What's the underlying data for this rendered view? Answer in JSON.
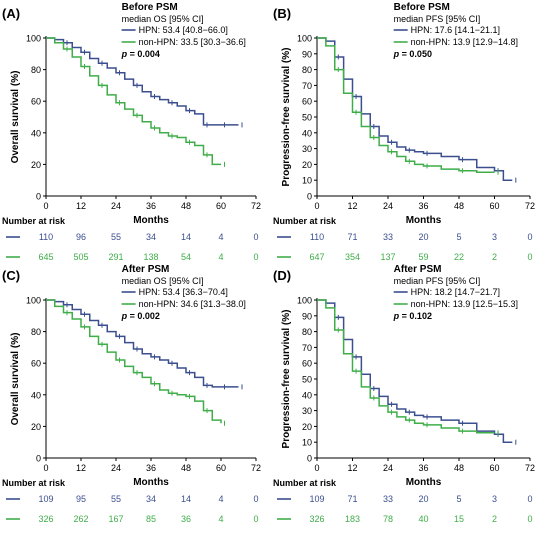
{
  "colors": {
    "hpn": "#3b4f8f",
    "non_hpn": "#3fae49",
    "axis": "#000000"
  },
  "chart_data": [
    {
      "type": "line",
      "panel_label": "(A)",
      "title": "Before PSM",
      "legend_header": "median OS [95% CI]",
      "legend_placement": "top-right",
      "ylabel": "Overall survival (%)",
      "xlabel": "Months",
      "xlim": [
        0,
        72
      ],
      "ylim": [
        0,
        100
      ],
      "x_ticks": [
        "0",
        "12",
        "24",
        "36",
        "48",
        "60",
        "72"
      ],
      "y_ticks": [
        "0",
        "20",
        "40",
        "60",
        "80",
        "100"
      ],
      "pvalue_label": "p",
      "pvalue": " = 0.004",
      "series": [
        {
          "name": "HPN: 53.4 [40.8−66.0]",
          "color_key": "hpn",
          "x": [
            0,
            3,
            6,
            9,
            12,
            15,
            18,
            21,
            24,
            27,
            30,
            33,
            36,
            39,
            42,
            45,
            48,
            51,
            54,
            57,
            60,
            63,
            66
          ],
          "y": [
            100,
            99,
            97,
            94,
            91,
            87,
            84,
            81,
            78,
            74,
            70,
            66,
            63,
            61,
            59,
            57,
            54,
            52,
            45,
            45,
            45,
            45,
            45
          ]
        },
        {
          "name": "non-HPN: 33.5 [30.3−36.6]",
          "color_key": "non_hpn",
          "x": [
            0,
            3,
            6,
            9,
            12,
            15,
            18,
            21,
            24,
            27,
            30,
            33,
            36,
            39,
            42,
            45,
            48,
            51,
            54,
            57,
            60
          ],
          "y": [
            100,
            97,
            93,
            88,
            82,
            76,
            70,
            64,
            59,
            55,
            51,
            47,
            43,
            40,
            38,
            37,
            34,
            32,
            26,
            20,
            20
          ]
        }
      ]
    },
    {
      "type": "line",
      "panel_label": "(B)",
      "title": "Before PSM",
      "legend_header": "median PFS [95% CI]",
      "legend_placement": "top-right",
      "ylabel": "Progression-free survival (%)",
      "xlabel": "Months",
      "xlim": [
        0,
        72
      ],
      "ylim": [
        0,
        100
      ],
      "x_ticks": [
        "0",
        "12",
        "24",
        "36",
        "48",
        "60",
        "72"
      ],
      "y_ticks": [
        "0",
        "10",
        "20",
        "30",
        "40",
        "50",
        "60",
        "70",
        "80",
        "90",
        "100"
      ],
      "pvalue_label": "p",
      "pvalue": " = 0.050",
      "series": [
        {
          "name": "HPN: 17.6 [14.1−21.1]",
          "color_key": "hpn",
          "x": [
            0,
            3,
            6,
            9,
            12,
            15,
            18,
            21,
            24,
            27,
            30,
            33,
            36,
            42,
            48,
            54,
            60,
            63,
            66
          ],
          "y": [
            100,
            98,
            88,
            74,
            63,
            52,
            44,
            38,
            34,
            31,
            29,
            28,
            27,
            25,
            23,
            18,
            16,
            10,
            10
          ]
        },
        {
          "name": "non-HPN: 13.9 [12.9−14.8]",
          "color_key": "non_hpn",
          "x": [
            0,
            3,
            6,
            9,
            12,
            15,
            18,
            21,
            24,
            27,
            30,
            33,
            36,
            42,
            48,
            54,
            60
          ],
          "y": [
            100,
            95,
            80,
            65,
            53,
            44,
            37,
            32,
            28,
            25,
            22,
            20,
            19,
            17,
            16,
            15,
            15
          ]
        }
      ]
    },
    {
      "type": "line",
      "panel_label": "(C)",
      "title": "After PSM",
      "legend_header": "median OS [95% CI]",
      "legend_placement": "top-right",
      "ylabel": "Overall survival (%)",
      "xlabel": "Months",
      "xlim": [
        0,
        72
      ],
      "ylim": [
        0,
        100
      ],
      "x_ticks": [
        "0",
        "12",
        "24",
        "36",
        "48",
        "60",
        "72"
      ],
      "y_ticks": [
        "0",
        "20",
        "40",
        "60",
        "80",
        "100"
      ],
      "pvalue_label": "p",
      "pvalue": " = 0.002",
      "series": [
        {
          "name": "HPN: 53.4 [36.3−70.4]",
          "color_key": "hpn",
          "x": [
            0,
            3,
            6,
            9,
            12,
            15,
            18,
            21,
            24,
            27,
            30,
            33,
            36,
            39,
            42,
            45,
            48,
            51,
            54,
            57,
            60,
            63,
            66
          ],
          "y": [
            100,
            99,
            97,
            94,
            91,
            87,
            84,
            80,
            77,
            73,
            69,
            66,
            64,
            62,
            60,
            57,
            54,
            51,
            46,
            45,
            45,
            45,
            45
          ]
        },
        {
          "name": "non-HPN: 34.6 [31.3−38.0]",
          "color_key": "non_hpn",
          "x": [
            0,
            3,
            6,
            9,
            12,
            15,
            18,
            21,
            24,
            27,
            30,
            33,
            36,
            39,
            42,
            45,
            48,
            51,
            54,
            57,
            60
          ],
          "y": [
            100,
            96,
            92,
            88,
            83,
            77,
            72,
            67,
            62,
            58,
            54,
            51,
            47,
            43,
            41,
            40,
            39,
            36,
            30,
            24,
            22
          ]
        }
      ]
    },
    {
      "type": "line",
      "panel_label": "(D)",
      "title": "After PSM",
      "legend_header": "median PFS [95% CI]",
      "legend_placement": "top-right",
      "ylabel": "Progression-free survival (%)",
      "xlabel": "Months",
      "xlim": [
        0,
        72
      ],
      "ylim": [
        0,
        100
      ],
      "x_ticks": [
        "0",
        "12",
        "24",
        "36",
        "48",
        "60",
        "72"
      ],
      "y_ticks": [
        "0",
        "10",
        "20",
        "30",
        "40",
        "50",
        "60",
        "70",
        "80",
        "90",
        "100"
      ],
      "pvalue_label": "p",
      "pvalue": " = 0.102",
      "series": [
        {
          "name": "HPN: 18.2 [14.7−21.7]",
          "color_key": "hpn",
          "x": [
            0,
            3,
            6,
            9,
            12,
            15,
            18,
            21,
            24,
            27,
            30,
            33,
            36,
            42,
            48,
            54,
            60,
            63,
            66
          ],
          "y": [
            100,
            98,
            89,
            75,
            64,
            53,
            44,
            39,
            34,
            31,
            29,
            27,
            26,
            24,
            22,
            17,
            15,
            10,
            10
          ]
        },
        {
          "name": "non-HPN: 13.9 [12.5−15.3]",
          "color_key": "non_hpn",
          "x": [
            0,
            3,
            6,
            9,
            12,
            15,
            18,
            21,
            24,
            27,
            30,
            33,
            36,
            42,
            48,
            54,
            60
          ],
          "y": [
            100,
            95,
            81,
            66,
            55,
            45,
            38,
            33,
            29,
            26,
            24,
            22,
            21,
            19,
            17,
            16,
            16
          ]
        }
      ]
    }
  ],
  "risk_tables": [
    {
      "title": "Number at risk",
      "rows": [
        {
          "series": "HPN",
          "values": [
            "110",
            "96",
            "55",
            "34",
            "14",
            "4",
            "0"
          ]
        },
        {
          "series": "non-HPN",
          "values": [
            "645",
            "505",
            "291",
            "138",
            "54",
            "4",
            "0"
          ]
        }
      ]
    },
    {
      "title": "Number at risk",
      "rows": [
        {
          "series": "HPN",
          "values": [
            "110",
            "71",
            "33",
            "20",
            "5",
            "3",
            "0"
          ]
        },
        {
          "series": "non-HPN",
          "values": [
            "647",
            "354",
            "137",
            "59",
            "22",
            "2",
            "0"
          ]
        }
      ]
    },
    {
      "title": "Number at risk",
      "rows": [
        {
          "series": "HPN",
          "values": [
            "109",
            "95",
            "55",
            "34",
            "14",
            "4",
            "0"
          ]
        },
        {
          "series": "non-HPN",
          "values": [
            "326",
            "262",
            "167",
            "85",
            "36",
            "4",
            "0"
          ]
        }
      ]
    },
    {
      "title": "Number at risk",
      "rows": [
        {
          "series": "HPN",
          "values": [
            "109",
            "71",
            "33",
            "20",
            "5",
            "3",
            "0"
          ]
        },
        {
          "series": "non-HPN",
          "values": [
            "326",
            "183",
            "78",
            "40",
            "15",
            "2",
            "0"
          ]
        }
      ]
    }
  ]
}
